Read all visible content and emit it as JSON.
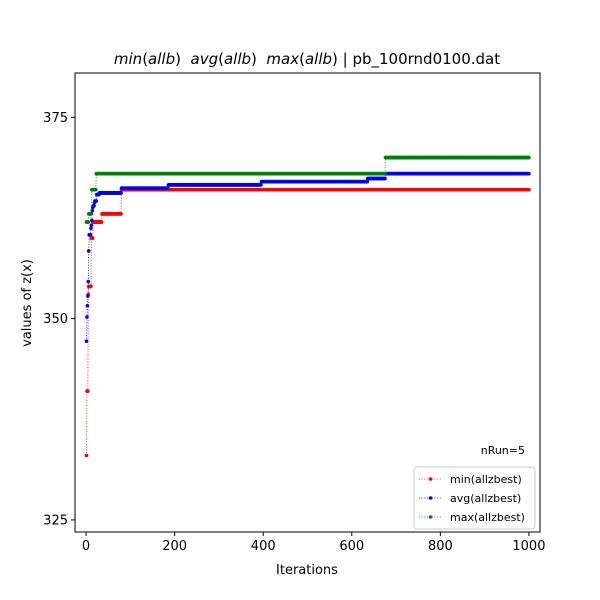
{
  "chart_data": {
    "type": "line",
    "title_parts": [
      {
        "text": "min",
        "italic": true
      },
      {
        "text": "(",
        "italic": false
      },
      {
        "text": "allb",
        "italic": true
      },
      {
        "text": ")  ",
        "italic": false
      },
      {
        "text": "avg",
        "italic": true
      },
      {
        "text": "(",
        "italic": false
      },
      {
        "text": "allb",
        "italic": true
      },
      {
        "text": ")  ",
        "italic": false
      },
      {
        "text": "max",
        "italic": true
      },
      {
        "text": "(",
        "italic": false
      },
      {
        "text": "allb",
        "italic": true
      },
      {
        "text": ") | pb_100rnd0100.dat",
        "italic": false
      }
    ],
    "xlabel": "Iterations",
    "ylabel": "values of z(x)",
    "xlim": [
      -25,
      1025
    ],
    "ylim": [
      323.5,
      380.5
    ],
    "xticks": [
      0,
      200,
      400,
      600,
      800,
      1000
    ],
    "yticks": [
      325,
      350,
      375
    ],
    "annotation": "nRun=5",
    "legend_position": "lower-right",
    "series": [
      {
        "name": "min(allzbest)",
        "color": "#ff0000",
        "points": [
          [
            1,
            333
          ],
          [
            2,
            341
          ],
          [
            3,
            341
          ],
          [
            4,
            341
          ],
          [
            5,
            353
          ],
          [
            6,
            354
          ],
          [
            7,
            354
          ],
          [
            8,
            354
          ],
          [
            9,
            354
          ],
          [
            10,
            354
          ],
          [
            11,
            354
          ],
          [
            12,
            360
          ],
          [
            13,
            360
          ],
          [
            14,
            360
          ],
          [
            15,
            360
          ],
          [
            16,
            362
          ],
          [
            35,
            362
          ],
          [
            36,
            363
          ],
          [
            79,
            363
          ],
          [
            80,
            366
          ],
          [
            1000,
            366
          ]
        ]
      },
      {
        "name": "avg(allzbest)",
        "color": "#0000ff",
        "points": [
          [
            1,
            347.2
          ],
          [
            2,
            350.2
          ],
          [
            3,
            351.6
          ],
          [
            4,
            352.8
          ],
          [
            5,
            354.6
          ],
          [
            6,
            358.4
          ],
          [
            7,
            360.4
          ],
          [
            8,
            360.4
          ],
          [
            9,
            360.4
          ],
          [
            10,
            360.4
          ],
          [
            11,
            361.2
          ],
          [
            12,
            361.6
          ],
          [
            13,
            362.2
          ],
          [
            14,
            363.4
          ],
          [
            15,
            363.8
          ],
          [
            16,
            364
          ],
          [
            17,
            364
          ],
          [
            18,
            364
          ],
          [
            19,
            364.4
          ],
          [
            20,
            364.6
          ],
          [
            21,
            364.6
          ],
          [
            22,
            364.6
          ],
          [
            23,
            364.6
          ],
          [
            24,
            365.4
          ],
          [
            25,
            365.4
          ],
          [
            26,
            365.4
          ],
          [
            27,
            365.4
          ],
          [
            28,
            365.4
          ],
          [
            29,
            365.4
          ],
          [
            30,
            365.6
          ],
          [
            79,
            365.6
          ],
          [
            80,
            366.2
          ],
          [
            185,
            366.2
          ],
          [
            186,
            366.6
          ],
          [
            395,
            366.6
          ],
          [
            396,
            367
          ],
          [
            635,
            367
          ],
          [
            636,
            367.4
          ],
          [
            675,
            367.4
          ],
          [
            676,
            368
          ],
          [
            1000,
            368
          ]
        ]
      },
      {
        "name": "max(allzbest)",
        "color": "#008000",
        "points": [
          [
            1,
            362
          ],
          [
            5,
            362
          ],
          [
            6,
            363
          ],
          [
            12,
            363
          ],
          [
            13,
            366
          ],
          [
            22,
            366
          ],
          [
            23,
            368
          ],
          [
            675,
            368
          ],
          [
            676,
            370
          ],
          [
            1000,
            370
          ]
        ]
      }
    ]
  }
}
